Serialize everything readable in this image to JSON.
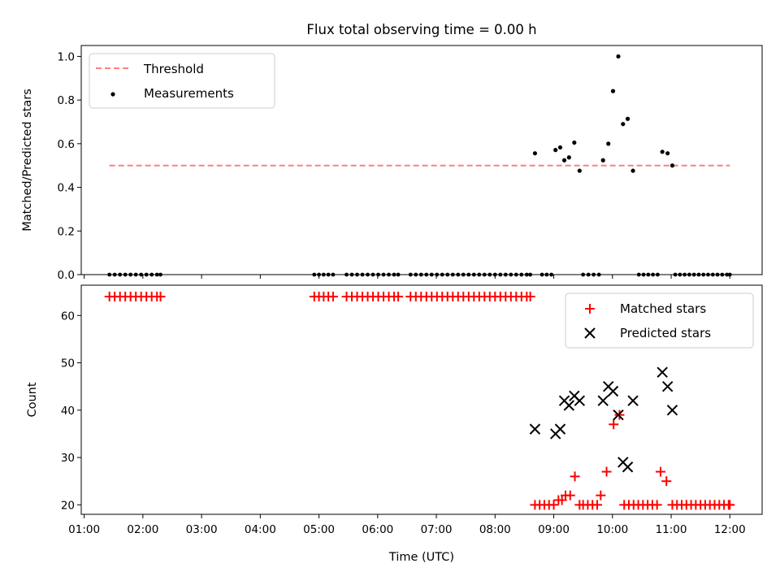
{
  "figure": {
    "title": "Flux total observing time = 0.00 h"
  },
  "chart_data": [
    {
      "type": "scatter",
      "ylabel": "Matched/Predicted stars",
      "xlim": [
        0.95,
        12.55
      ],
      "ylim": [
        0.0,
        1.05
      ],
      "yticks": [
        0.0,
        0.2,
        0.4,
        0.6,
        0.8,
        1.0
      ],
      "ytick_labels": [
        "0.0",
        "0.2",
        "0.4",
        "0.6",
        "0.8",
        "1.0"
      ],
      "legend": {
        "position": "top-left",
        "entries": [
          {
            "label": "Threshold",
            "marker": "dashed-line",
            "color": "#ff7f7f"
          },
          {
            "label": "Measurements",
            "marker": "dot",
            "color": "#000000"
          }
        ]
      },
      "threshold": {
        "value": 0.5,
        "x_range": [
          1.43,
          12.0
        ],
        "color": "#ff7f7f"
      },
      "measurements": {
        "color": "#000000",
        "zero_x": [
          1.43,
          1.52,
          1.61,
          1.7,
          1.79,
          1.88,
          1.97,
          2.06,
          2.15,
          2.24,
          2.3,
          4.92,
          5.0,
          5.08,
          5.16,
          5.24,
          5.47,
          5.56,
          5.65,
          5.74,
          5.83,
          5.92,
          6.01,
          6.1,
          6.19,
          6.28,
          6.35,
          6.56,
          6.65,
          6.74,
          6.83,
          6.92,
          7.01,
          7.1,
          7.19,
          7.28,
          7.37,
          7.46,
          7.55,
          7.64,
          7.73,
          7.82,
          7.91,
          8.0,
          8.09,
          8.18,
          8.27,
          8.36,
          8.45,
          8.54,
          8.6,
          8.8,
          8.88,
          8.96,
          9.5,
          9.59,
          9.68,
          9.77,
          10.45,
          10.53,
          10.61,
          10.69,
          10.77,
          11.07,
          11.15,
          11.23,
          11.31,
          11.39,
          11.47,
          11.55,
          11.63,
          11.71,
          11.79,
          11.87,
          11.95,
          12.0
        ],
        "points": [
          {
            "x": 8.68,
            "y": 0.556
          },
          {
            "x": 9.03,
            "y": 0.571
          },
          {
            "x": 9.11,
            "y": 0.583
          },
          {
            "x": 9.18,
            "y": 0.524
          },
          {
            "x": 9.26,
            "y": 0.537
          },
          {
            "x": 9.35,
            "y": 0.605
          },
          {
            "x": 9.44,
            "y": 0.476
          },
          {
            "x": 9.84,
            "y": 0.524
          },
          {
            "x": 9.93,
            "y": 0.6
          },
          {
            "x": 10.01,
            "y": 0.841
          },
          {
            "x": 10.1,
            "y": 1.0
          },
          {
            "x": 10.18,
            "y": 0.69
          },
          {
            "x": 10.26,
            "y": 0.714
          },
          {
            "x": 10.35,
            "y": 0.476
          },
          {
            "x": 10.85,
            "y": 0.563
          },
          {
            "x": 10.94,
            "y": 0.556
          },
          {
            "x": 11.02,
            "y": 0.5
          }
        ]
      }
    },
    {
      "type": "scatter",
      "xlabel": "Time (UTC)",
      "ylabel": "Count",
      "xlim": [
        0.95,
        12.55
      ],
      "ylim": [
        18,
        66.4
      ],
      "xticks": [
        1,
        2,
        3,
        4,
        5,
        6,
        7,
        8,
        9,
        10,
        11,
        12
      ],
      "xtick_labels": [
        "01:00",
        "02:00",
        "03:00",
        "04:00",
        "05:00",
        "06:00",
        "07:00",
        "08:00",
        "09:00",
        "10:00",
        "11:00",
        "12:00"
      ],
      "yticks": [
        20,
        30,
        40,
        50,
        60
      ],
      "ytick_labels": [
        "20",
        "30",
        "40",
        "50",
        "60"
      ],
      "legend": {
        "position": "top-right",
        "entries": [
          {
            "label": "Matched stars",
            "marker": "plus",
            "color": "#ff0000"
          },
          {
            "label": "Predicted stars",
            "marker": "x",
            "color": "#000000"
          }
        ]
      },
      "matched_high": {
        "y": 64,
        "x": [
          1.43,
          1.52,
          1.61,
          1.7,
          1.79,
          1.88,
          1.97,
          2.06,
          2.15,
          2.24,
          2.3,
          4.92,
          5.0,
          5.08,
          5.16,
          5.24,
          5.47,
          5.56,
          5.65,
          5.74,
          5.83,
          5.92,
          6.01,
          6.1,
          6.19,
          6.28,
          6.35,
          6.56,
          6.65,
          6.74,
          6.83,
          6.92,
          7.01,
          7.1,
          7.19,
          7.28,
          7.37,
          7.46,
          7.55,
          7.64,
          7.73,
          7.82,
          7.91,
          8.0,
          8.09,
          8.18,
          8.27,
          8.36,
          8.45,
          8.54,
          8.6
        ]
      },
      "matched_low": {
        "y": 20,
        "x": [
          8.68,
          8.76,
          8.84,
          8.92,
          9.0,
          9.5,
          9.58,
          9.66,
          9.74,
          10.2,
          10.28,
          10.36,
          10.44,
          10.52,
          10.6,
          10.68,
          10.76,
          11.02,
          11.1,
          11.18,
          11.26,
          11.34,
          11.42,
          11.5,
          11.58,
          11.66,
          11.74,
          11.82,
          11.9,
          11.98,
          12.0
        ]
      },
      "matched_points": [
        {
          "x": 9.08,
          "y": 21
        },
        {
          "x": 9.14,
          "y": 21
        },
        {
          "x": 9.2,
          "y": 22
        },
        {
          "x": 9.28,
          "y": 22
        },
        {
          "x": 9.36,
          "y": 26
        },
        {
          "x": 9.44,
          "y": 20
        },
        {
          "x": 9.8,
          "y": 22
        },
        {
          "x": 9.9,
          "y": 27
        },
        {
          "x": 10.02,
          "y": 37
        },
        {
          "x": 10.12,
          "y": 39
        },
        {
          "x": 10.82,
          "y": 27
        },
        {
          "x": 10.92,
          "y": 25
        }
      ],
      "predicted_points": [
        {
          "x": 8.68,
          "y": 36
        },
        {
          "x": 9.03,
          "y": 35
        },
        {
          "x": 9.11,
          "y": 36
        },
        {
          "x": 9.18,
          "y": 42
        },
        {
          "x": 9.26,
          "y": 41
        },
        {
          "x": 9.35,
          "y": 43
        },
        {
          "x": 9.44,
          "y": 42
        },
        {
          "x": 9.84,
          "y": 42
        },
        {
          "x": 9.93,
          "y": 45
        },
        {
          "x": 10.01,
          "y": 44
        },
        {
          "x": 10.1,
          "y": 39
        },
        {
          "x": 10.18,
          "y": 29
        },
        {
          "x": 10.26,
          "y": 28
        },
        {
          "x": 10.35,
          "y": 42
        },
        {
          "x": 10.85,
          "y": 48
        },
        {
          "x": 10.94,
          "y": 45
        },
        {
          "x": 11.02,
          "y": 40
        }
      ]
    }
  ]
}
